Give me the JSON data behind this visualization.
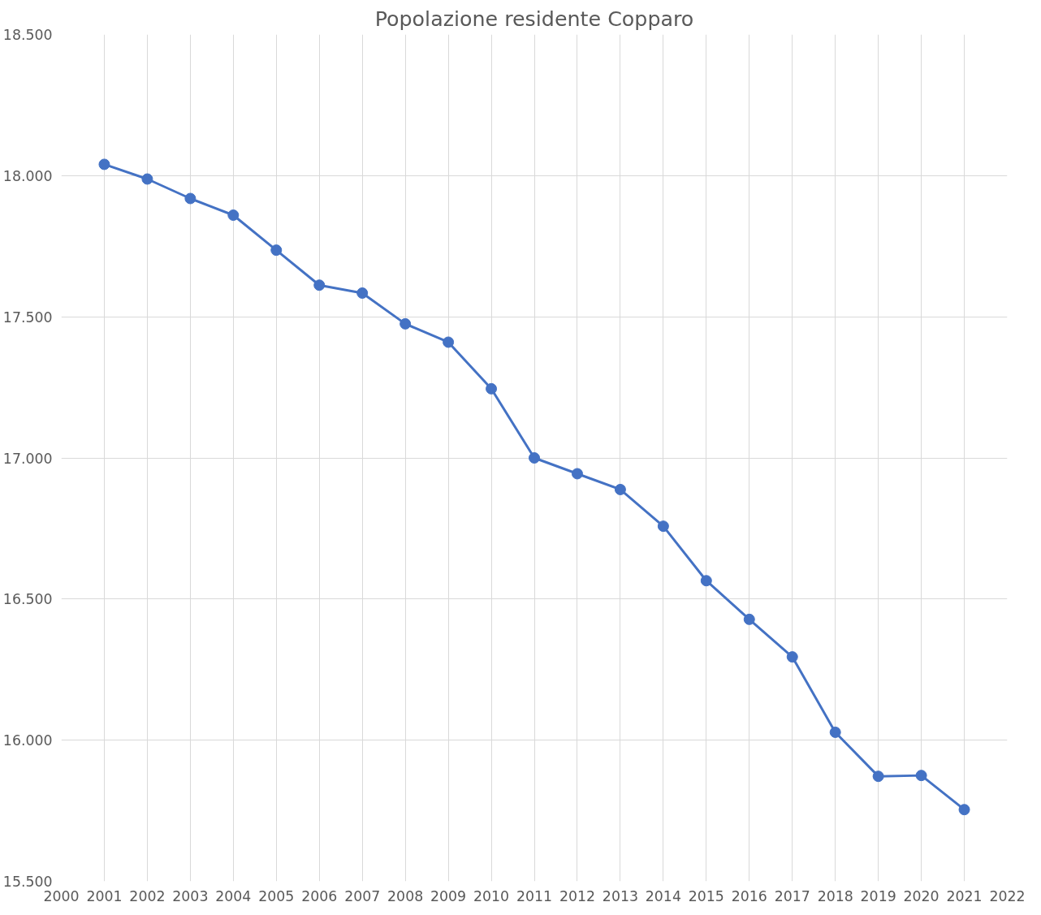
{
  "chart_data": {
    "type": "line",
    "title": "Popolazione residente Copparo",
    "x": [
      2001,
      2002,
      2003,
      2004,
      2005,
      2006,
      2007,
      2008,
      2009,
      2010,
      2011,
      2012,
      2013,
      2014,
      2015,
      2016,
      2017,
      2018,
      2019,
      2020,
      2021
    ],
    "series": [
      {
        "color": "#4472c4",
        "values": [
          18040,
          17988,
          17919,
          17860,
          17736,
          17612,
          17584,
          17475,
          17410,
          17245,
          17000,
          16944,
          16888,
          16758,
          16565,
          16428,
          16295,
          16028,
          15872,
          15875,
          15754
        ]
      }
    ],
    "xlim": [
      2000,
      2022
    ],
    "xticks": [
      2000,
      2001,
      2002,
      2003,
      2004,
      2005,
      2006,
      2007,
      2008,
      2009,
      2010,
      2011,
      2012,
      2013,
      2014,
      2015,
      2016,
      2017,
      2018,
      2019,
      2020,
      2021,
      2022
    ],
    "ylim": [
      15500,
      18500
    ],
    "yticks": [
      {
        "value": 15500,
        "label": "15.500"
      },
      {
        "value": 16000,
        "label": "16.000"
      },
      {
        "value": 16500,
        "label": "16.500"
      },
      {
        "value": 17000,
        "label": "17.000"
      },
      {
        "value": 17500,
        "label": "17.500"
      },
      {
        "value": 18000,
        "label": "18.000"
      },
      {
        "value": 18500,
        "label": "18.500"
      }
    ],
    "grid": true,
    "marker": "circle",
    "line_style": "solid"
  }
}
